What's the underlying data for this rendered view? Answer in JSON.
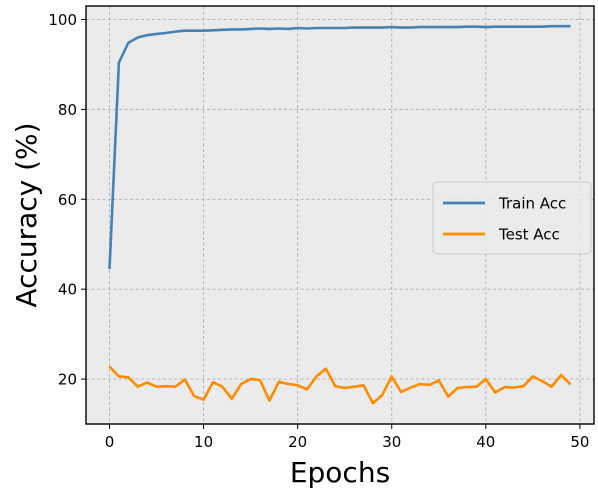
{
  "chart_data": {
    "type": "line",
    "title": "",
    "xlabel": "Epochs",
    "ylabel": "Accuracy (%)",
    "xlim": [
      -2.5,
      51.5
    ],
    "ylim": [
      10,
      103
    ],
    "xticks": [
      0,
      10,
      20,
      30,
      40,
      50
    ],
    "xtick_labels": [
      "0",
      "10",
      "20",
      "30",
      "40",
      "50"
    ],
    "yticks": [
      20,
      40,
      60,
      80,
      100
    ],
    "ytick_labels": [
      "20",
      "40",
      "60",
      "80",
      "100"
    ],
    "grid": true,
    "legend_position": "center-right",
    "x": [
      0,
      1,
      2,
      3,
      4,
      5,
      6,
      7,
      8,
      9,
      10,
      11,
      12,
      13,
      14,
      15,
      16,
      17,
      18,
      19,
      20,
      21,
      22,
      23,
      24,
      25,
      26,
      27,
      28,
      29,
      30,
      31,
      32,
      33,
      34,
      35,
      36,
      37,
      38,
      39,
      40,
      41,
      42,
      43,
      44,
      45,
      46,
      47,
      48,
      49
    ],
    "series": [
      {
        "name": "Train Acc",
        "color": "#4682b4",
        "values": [
          44.5,
          90.4,
          94.8,
          96.0,
          96.5,
          96.8,
          97.0,
          97.3,
          97.5,
          97.5,
          97.5,
          97.6,
          97.7,
          97.8,
          97.8,
          97.9,
          98.0,
          97.9,
          98.0,
          97.9,
          98.1,
          98.0,
          98.1,
          98.1,
          98.1,
          98.1,
          98.2,
          98.2,
          98.2,
          98.2,
          98.3,
          98.2,
          98.2,
          98.3,
          98.3,
          98.3,
          98.3,
          98.3,
          98.4,
          98.4,
          98.3,
          98.4,
          98.4,
          98.4,
          98.4,
          98.4,
          98.4,
          98.5,
          98.5,
          98.5
        ]
      },
      {
        "name": "Test Acc",
        "color": "#ff8c00",
        "values": [
          22.8,
          20.6,
          20.4,
          18.3,
          19.2,
          18.3,
          18.4,
          18.3,
          19.9,
          16.2,
          15.4,
          19.3,
          18.3,
          15.6,
          18.9,
          20.0,
          19.8,
          15.2,
          19.4,
          18.9,
          18.6,
          17.7,
          20.6,
          22.3,
          18.4,
          18.0,
          18.3,
          18.6,
          14.6,
          16.5,
          20.6,
          17.1,
          18.1,
          18.9,
          18.7,
          19.7,
          16.1,
          18.0,
          18.2,
          18.3,
          20.0,
          17.0,
          18.2,
          18.1,
          18.4,
          20.6,
          19.5,
          18.3,
          20.9,
          18.8
        ]
      }
    ]
  }
}
